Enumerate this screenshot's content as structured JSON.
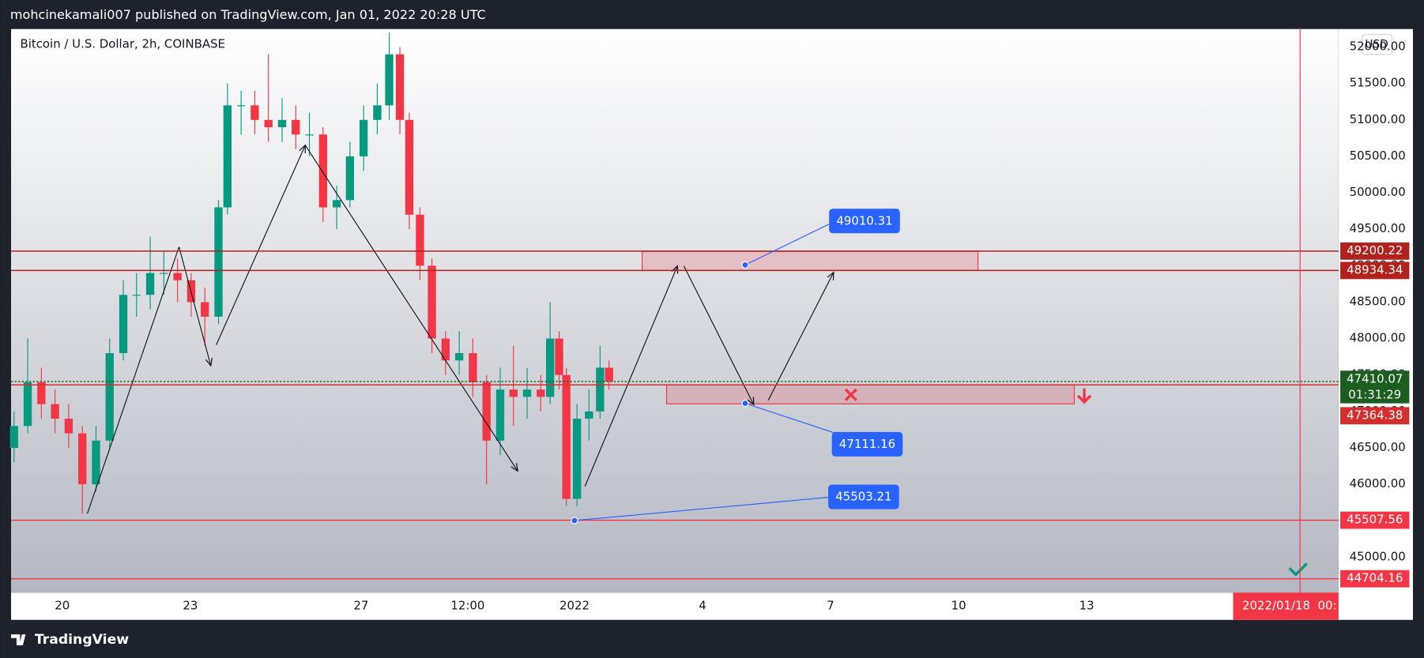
{
  "header": {
    "title": "mohcinekamali007 published on TradingView.com, Jan 01, 2022 20:28 UTC"
  },
  "footer": {
    "brand": "TradingView"
  },
  "chart_data": {
    "type": "candlestick",
    "title": "Bitcoin / U.S. Dollar, 2h, COINBASE",
    "currency": "USD",
    "up_color": "#089981",
    "down_color": "#f23645",
    "xlim": [
      18.8,
      49.9
    ],
    "xticks": [
      20,
      23,
      27,
      {
        "value": 29.5,
        "label": "12:00"
      },
      {
        "value": 32,
        "label": "2022"
      },
      {
        "value": 35,
        "label": "4"
      },
      {
        "value": 38,
        "label": "7"
      },
      {
        "value": 41,
        "label": "10"
      },
      {
        "value": 44,
        "label": "13"
      }
    ],
    "ylim": [
      44526,
      52247
    ],
    "yticks": [
      {
        "value": 45000,
        "label": "45000.00"
      },
      {
        "value": 45500,
        "label": "45500.00"
      },
      {
        "value": 46000,
        "label": "46000.00"
      },
      {
        "value": 46500,
        "label": "46500.00"
      },
      {
        "value": 47000,
        "label": "47000.00"
      },
      {
        "value": 47500,
        "label": "47500.00"
      },
      {
        "value": 48000,
        "label": "48000.00"
      },
      {
        "value": 48500,
        "label": "48500.00"
      },
      {
        "value": 49000,
        "label": "49000.00"
      },
      {
        "value": 49500,
        "label": "49500.00"
      },
      {
        "value": 50000,
        "label": "50000.00"
      },
      {
        "value": 50500,
        "label": "50500.00"
      },
      {
        "value": 51000,
        "label": "51000.00"
      },
      {
        "value": 51500,
        "label": "51500.00"
      },
      {
        "value": 52000,
        "label": "52000.00"
      }
    ],
    "x": [
      18.87,
      19.19,
      19.51,
      19.83,
      20.15,
      20.47,
      20.79,
      21.11,
      21.43,
      21.74,
      22.06,
      22.38,
      22.7,
      23.02,
      23.34,
      23.66,
      23.87,
      24.19,
      24.51,
      24.83,
      25.15,
      25.47,
      25.79,
      26.11,
      26.43,
      26.74,
      27.06,
      27.38,
      27.66,
      27.91,
      28.13,
      28.38,
      28.66,
      28.98,
      29.3,
      29.62,
      29.94,
      30.26,
      30.57,
      30.89,
      31.21,
      31.43,
      31.64,
      31.81,
      32.06,
      32.34,
      32.6,
      32.81
    ],
    "open": [
      46500,
      46800,
      47400,
      47100,
      46900,
      46700,
      46000,
      46600,
      47800,
      48600,
      48600,
      48900,
      48900,
      48800,
      48500,
      48300,
      49800,
      51200,
      51200,
      51000,
      50900,
      51000,
      50800,
      50800,
      49800,
      49900,
      50500,
      51000,
      51200,
      51900,
      51000,
      49700,
      49000,
      48000,
      47700,
      47800,
      47400,
      46600,
      47300,
      47200,
      47300,
      47200,
      48000,
      47500,
      45800,
      46900,
      47000,
      47600
    ],
    "high": [
      47000,
      48000,
      47600,
      47300,
      47100,
      46800,
      46800,
      48000,
      48800,
      48900,
      49400,
      49200,
      49100,
      48900,
      48700,
      49900,
      51500,
      51400,
      51400,
      51900,
      51300,
      51200,
      51100,
      50900,
      50100,
      50700,
      51200,
      51500,
      52200,
      52000,
      51100,
      49800,
      49100,
      48100,
      48100,
      48000,
      47500,
      47600,
      47900,
      47600,
      47500,
      48500,
      48100,
      47600,
      47100,
      47300,
      47900,
      47700
    ],
    "low": [
      46300,
      46700,
      46900,
      46700,
      46500,
      45600,
      45900,
      46500,
      47700,
      48300,
      48400,
      48600,
      48500,
      48300,
      47900,
      48200,
      49700,
      50800,
      50800,
      50700,
      50700,
      50600,
      50500,
      49600,
      49500,
      49800,
      50300,
      50800,
      51000,
      50800,
      49500,
      48800,
      47800,
      47500,
      47500,
      47200,
      46000,
      46400,
      46800,
      46900,
      47000,
      47100,
      47300,
      45700,
      45700,
      46600,
      46900,
      47300
    ],
    "close": [
      46800,
      47400,
      47100,
      46900,
      46700,
      46000,
      46600,
      47800,
      48600,
      48600,
      48900,
      48900,
      48800,
      48500,
      48300,
      49800,
      51200,
      51200,
      51000,
      50900,
      51000,
      50800,
      50800,
      49800,
      49900,
      50500,
      51000,
      51200,
      51900,
      51000,
      49700,
      49000,
      48000,
      47700,
      47800,
      47400,
      46600,
      47300,
      47200,
      47300,
      47200,
      48000,
      47500,
      45800,
      46900,
      47000,
      47600,
      47410.07
    ],
    "price_lines": [
      {
        "value": 49200.22,
        "color": "#b2221d"
      },
      {
        "value": 48934.34,
        "color": "#b2221d"
      },
      {
        "value": 47410.07,
        "color": "#1b5e20"
      },
      {
        "value": 47364.38,
        "color": "#d32f2f"
      },
      {
        "value": 45507.56,
        "color": "#f23645"
      },
      {
        "value": 44704.16,
        "color": "#f23645"
      }
    ],
    "countdown": "01:31:29",
    "callouts": [
      {
        "value": 49010.31,
        "x": 36.0
      },
      {
        "value": 47111.16,
        "x": 36.0
      },
      {
        "value": 45503.21,
        "x": 32.0
      }
    ],
    "cursor_x": 49.0,
    "cursor_label": "2022/01/18  00:"
  }
}
